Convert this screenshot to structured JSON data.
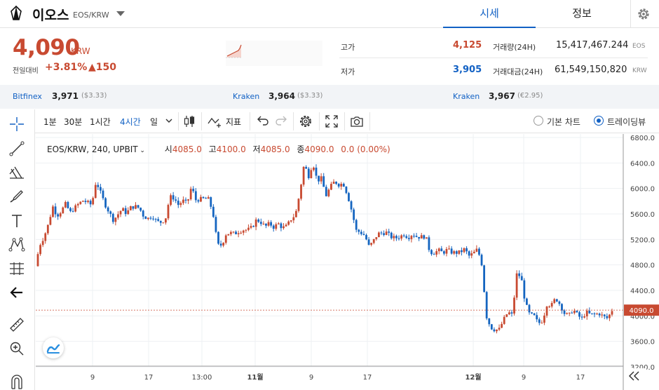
{
  "header": {
    "coin_name": "이오스",
    "pair": "EOS/KRW",
    "tabs": [
      {
        "label": "시세",
        "active": true
      },
      {
        "label": "정보",
        "active": false
      }
    ]
  },
  "summary": {
    "price": "4,090",
    "price_unit": "KRW",
    "change_label": "전일대비",
    "change_percent": "+3.81%",
    "change_amount": "▲150",
    "high_label": "고가",
    "high_value": "4,125",
    "low_label": "저가",
    "low_value": "3,905",
    "volume_label": "거래량(24H)",
    "volume_value": "15,417,467.244",
    "volume_unit": "EOS",
    "turnover_label": "거래대금(24H)",
    "turnover_value": "61,549,150,820",
    "turnover_unit": "KRW"
  },
  "exchanges": [
    {
      "name": "Bitfinex",
      "price": "3,971",
      "sub": "($3.33)"
    },
    {
      "name": "Kraken",
      "price": "3,964",
      "sub": "($3.33)"
    },
    {
      "name": "Kraken",
      "price": "3,967",
      "sub": "(€2.95)"
    }
  ],
  "toolbar": {
    "intervals": [
      {
        "label": "1분",
        "active": false
      },
      {
        "label": "30분",
        "active": false
      },
      {
        "label": "1시간",
        "active": false
      },
      {
        "label": "4시간",
        "active": true
      },
      {
        "label": "일",
        "active": false
      }
    ],
    "indicators_label": "지표",
    "basic_chart_label": "기본 차트",
    "tradingview_label": "트레이딩뷰"
  },
  "legend": {
    "symbol": "EOS/KRW, 240, UPBIT",
    "open_label": "시",
    "open": "4085.0",
    "high_label": "고",
    "high": "4100.0",
    "low_label": "저",
    "low": "4085.0",
    "close_label": "종",
    "close": "4090.0",
    "change": "0.0 (0.00%)"
  },
  "colors": {
    "up": "#c84a31",
    "down": "#1565c0",
    "accent": "#1261c4"
  },
  "icons": {
    "left_toolbar": [
      "crosshair-icon",
      "trend-line-icon",
      "fib-icon",
      "brush-icon",
      "text-icon",
      "pattern-icon",
      "measure-icon",
      "arrow-left-icon",
      "ruler-icon",
      "zoom-in-icon",
      "magnet-icon"
    ],
    "top_toolbar": [
      "candle-style-icon",
      "indicators-icon",
      "undo-icon",
      "redo-icon",
      "settings-icon",
      "fullscreen-icon",
      "camera-icon"
    ]
  },
  "chart_data": {
    "type": "candlestick",
    "current_price": 4090.0,
    "current_price_label": "4090.0",
    "y_ticks": [
      "6800.0",
      "6400.0",
      "6000.0",
      "5600.0",
      "5200.0",
      "4800.0",
      "4400.0",
      "4000.0",
      "3600.0",
      "3200.0"
    ],
    "y_tick_values": [
      6800,
      6400,
      6000,
      5600,
      5200,
      4800,
      4400,
      4000,
      3600,
      3200
    ],
    "ylim": [
      3200,
      6800
    ],
    "x_ticks": [
      "9",
      "17",
      "13:00",
      "11월",
      "9",
      "17",
      "12월",
      "9",
      "17"
    ],
    "x_tick_bold": [
      false,
      false,
      false,
      true,
      false,
      false,
      true,
      false,
      false
    ],
    "grid": true,
    "series": [
      {
        "values": [
          4780,
          5110,
          5240,
          5440,
          5720,
          5570,
          5650,
          5760,
          5620,
          5690,
          5760,
          5810,
          5780,
          5740,
          6120,
          5940,
          5760,
          5630,
          5500,
          5590,
          5680,
          5610,
          5700,
          5720,
          5690,
          5560,
          5530,
          5570,
          5480,
          5470,
          5520,
          5870,
          5850,
          5740,
          5810,
          5760,
          6030,
          5820,
          5830,
          5840,
          5830,
          5600,
          5110,
          5110,
          5290,
          5300,
          5290,
          5330,
          5350,
          5350,
          5390,
          5510,
          5470,
          5400,
          5450,
          5390,
          5450,
          5380,
          5410,
          5520,
          5590,
          5940,
          6390,
          6190,
          6410,
          6120,
          6160,
          5880,
          6020,
          6110,
          6060,
          6080,
          5900,
          5640,
          5340,
          5310,
          5260,
          5080,
          5180,
          5290,
          5300,
          5310,
          5240,
          5220,
          5240,
          5280,
          5230,
          5290,
          5240,
          5240,
          5250,
          5000,
          4990,
          5030,
          4990,
          5040,
          5000,
          4990,
          5000,
          5050,
          4940,
          4980,
          5050,
          4800,
          4000,
          3820,
          3780,
          3790,
          3940,
          4060,
          4010,
          4650,
          4620,
          4200,
          4020,
          4000,
          3880,
          3930,
          4190,
          4160,
          4280,
          4180,
          4040,
          4000,
          4100,
          4020,
          3950,
          4060,
          4020,
          4020,
          4040,
          3990,
          3960,
          4090
        ]
      }
    ]
  }
}
